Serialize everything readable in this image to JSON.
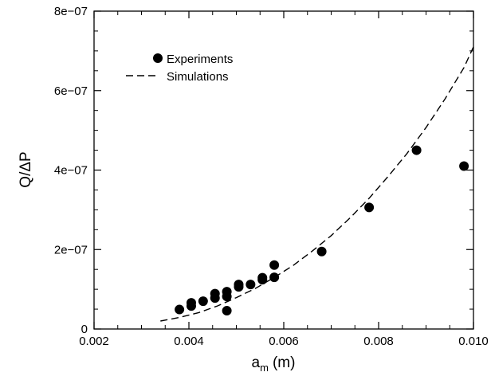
{
  "chart_data": {
    "type": "scatter",
    "xlabel": "a",
    "xlabel_sub": "m",
    "xlabel_unit": "(m)",
    "ylabel": "Q/ΔP",
    "xlim": [
      0.002,
      0.01
    ],
    "ylim": [
      0,
      8e-07
    ],
    "x_ticks": [
      0.002,
      0.004,
      0.006,
      0.008,
      0.01
    ],
    "x_tick_labels": [
      "0.002",
      "0.004",
      "0.006",
      "0.008",
      "0.010"
    ],
    "y_ticks": [
      0,
      2e-07,
      4e-07,
      6e-07,
      8e-07
    ],
    "y_tick_labels": [
      "0",
      "2e−07",
      "4e−07",
      "6e−07",
      "8e−07"
    ],
    "grid": false,
    "legend_position": "top-left",
    "series": [
      {
        "name": "Experiments",
        "kind": "markers",
        "color": "#000000",
        "x": [
          0.0038,
          0.00405,
          0.00405,
          0.0043,
          0.00455,
          0.00455,
          0.0048,
          0.0048,
          0.0048,
          0.00505,
          0.00505,
          0.0053,
          0.00555,
          0.00555,
          0.0058,
          0.0058,
          0.0068,
          0.0078,
          0.0088,
          0.0098
        ],
        "y": [
          4.9e-08,
          5.8e-08,
          6.6e-08,
          7e-08,
          7.8e-08,
          8.9e-08,
          4.6e-08,
          8.2e-08,
          9.4e-08,
          1.06e-07,
          1.12e-07,
          1.12e-07,
          1.24e-07,
          1.29e-07,
          1.3e-07,
          1.61e-07,
          1.95e-07,
          3.06e-07,
          4.5e-07,
          4.1e-07
        ]
      },
      {
        "name": "Simulations",
        "kind": "dashed-line",
        "color": "#000000",
        "x": [
          0.0034,
          0.0038,
          0.0042,
          0.0046,
          0.005,
          0.0054,
          0.0058,
          0.0062,
          0.0066,
          0.007,
          0.0074,
          0.0078,
          0.0082,
          0.0086,
          0.009,
          0.0094,
          0.0098,
          0.01
        ],
        "y": [
          2e-08,
          2.9e-08,
          4.1e-08,
          5.8e-08,
          7.9e-08,
          1.02e-07,
          1.3e-07,
          1.6e-07,
          1.96e-07,
          2.35e-07,
          2.8e-07,
          3.29e-07,
          3.84e-07,
          4.42e-07,
          5.07e-07,
          5.79e-07,
          6.58e-07,
          7.1e-07
        ]
      }
    ]
  }
}
